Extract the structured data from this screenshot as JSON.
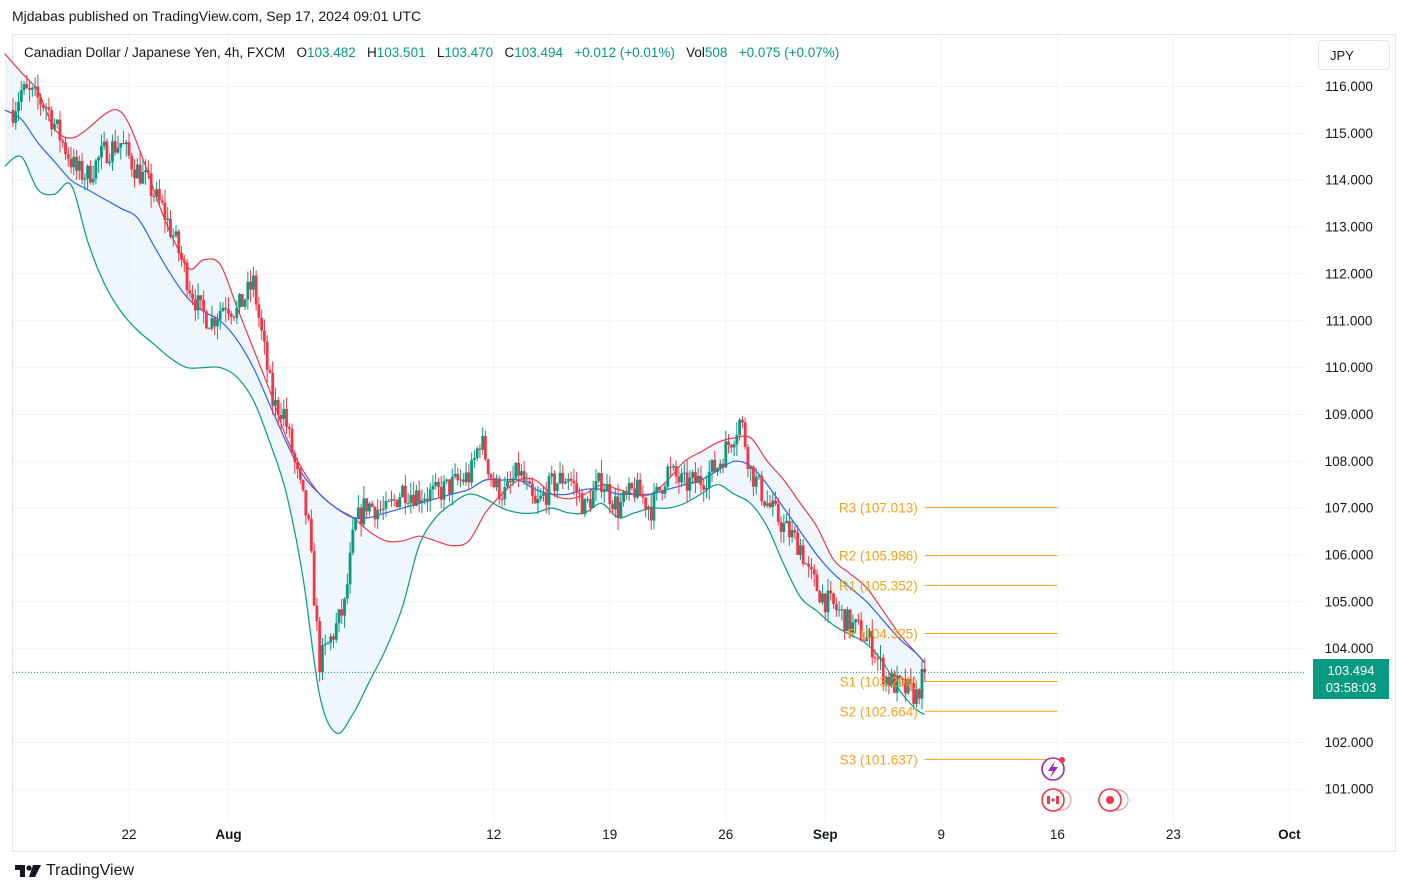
{
  "header": {
    "published_by": "Mjdabas published on TradingView.com, Sep 17, 2024 09:01 UTC"
  },
  "legend": {
    "symbol": "Canadian Dollar / Japanese Yen, 4h, FXCM",
    "open_label": "O",
    "open": "103.482",
    "high_label": "H",
    "high": "103.501",
    "low_label": "L",
    "low": "103.470",
    "close_label": "C",
    "close": "103.494",
    "change": "+0.012 (+0.01%)",
    "vol_label": "Vol",
    "vol": "508",
    "vol_change": "+0.075 (+0.07%)"
  },
  "currency_button": "JPY",
  "price_tag": {
    "price": "103.494",
    "countdown": "03:58:03"
  },
  "footer": {
    "brand": "TradingView"
  },
  "colors": {
    "up": "#089981",
    "down": "#f23645",
    "bb_upper": "#f23645",
    "bb_basis": "#2962ff",
    "bb_lower": "#089981",
    "bb_fill": "#e8f2fb",
    "pivot": "#f7a21b",
    "grid": "#f0f3fa"
  },
  "chart_data": {
    "type": "candlestick",
    "symbol": "CADJPY",
    "timeframe": "4h",
    "yticks": [
      "116.000",
      "115.000",
      "114.000",
      "113.000",
      "112.000",
      "111.000",
      "110.000",
      "109.000",
      "108.000",
      "107.000",
      "106.000",
      "105.000",
      "104.000",
      "102.000",
      "101.000"
    ],
    "ylim": [
      100.3,
      117.1
    ],
    "xlabels": [
      "22",
      "Aug",
      "12",
      "19",
      "26",
      "Sep",
      "9",
      "16",
      "23",
      "Oct"
    ],
    "xlabel_ticks": [
      22,
      28,
      44,
      51,
      58,
      64,
      71,
      78,
      85,
      92
    ],
    "xlim": [
      15,
      93
    ],
    "last_price": 103.494,
    "price_path": [
      [
        15.0,
        115.5
      ],
      [
        15.5,
        115.9
      ],
      [
        16.2,
        115.8
      ],
      [
        17.0,
        115.6
      ],
      [
        18.0,
        114.8
      ],
      [
        18.8,
        114.2
      ],
      [
        19.5,
        114.1
      ],
      [
        20.5,
        114.6
      ],
      [
        21.5,
        114.8
      ],
      [
        22.3,
        114.3
      ],
      [
        23.0,
        114.0
      ],
      [
        24.0,
        113.4
      ],
      [
        24.8,
        112.7
      ],
      [
        25.6,
        111.8
      ],
      [
        26.3,
        111.2
      ],
      [
        27.0,
        111.0
      ],
      [
        27.8,
        111.4
      ],
      [
        28.5,
        111.2
      ],
      [
        29.5,
        111.8
      ],
      [
        30.0,
        110.7
      ],
      [
        30.7,
        109.2
      ],
      [
        31.3,
        109.1
      ],
      [
        32.2,
        107.6
      ],
      [
        32.8,
        106.7
      ],
      [
        33.5,
        103.7
      ],
      [
        34.3,
        104.3
      ],
      [
        35.0,
        104.9
      ],
      [
        35.6,
        106.6
      ],
      [
        36.3,
        107.1
      ],
      [
        37.5,
        106.9
      ],
      [
        38.5,
        107.4
      ],
      [
        39.3,
        107.3
      ],
      [
        40.5,
        107.3
      ],
      [
        41.5,
        107.5
      ],
      [
        42.6,
        107.7
      ],
      [
        43.2,
        108.5
      ],
      [
        44.0,
        107.5
      ],
      [
        44.7,
        107.3
      ],
      [
        45.5,
        107.8
      ],
      [
        46.5,
        107.0
      ],
      [
        47.5,
        107.5
      ],
      [
        48.5,
        107.7
      ],
      [
        49.5,
        107.0
      ],
      [
        50.5,
        107.6
      ],
      [
        51.5,
        107.0
      ],
      [
        52.5,
        107.4
      ],
      [
        53.5,
        107.0
      ],
      [
        54.5,
        107.8
      ],
      [
        55.5,
        107.5
      ],
      [
        56.5,
        107.6
      ],
      [
        57.5,
        107.9
      ],
      [
        58.2,
        108.4
      ],
      [
        58.9,
        108.9
      ],
      [
        59.5,
        107.8
      ],
      [
        60.5,
        107.1
      ],
      [
        61.5,
        106.6
      ],
      [
        62.5,
        106.2
      ],
      [
        63.0,
        105.6
      ],
      [
        63.5,
        105.3
      ],
      [
        64.1,
        105.0
      ],
      [
        64.8,
        104.8
      ],
      [
        65.5,
        104.5
      ],
      [
        66.0,
        104.4
      ],
      [
        66.8,
        104.1
      ],
      [
        67.6,
        103.4
      ],
      [
        68.3,
        103.2
      ],
      [
        69.0,
        103.1
      ],
      [
        69.5,
        103.0
      ],
      [
        70.0,
        103.49
      ]
    ],
    "bollinger_bands": {
      "upper_path": [
        [
          14.5,
          116.7
        ],
        [
          15.5,
          116.3
        ],
        [
          16.5,
          115.9
        ],
        [
          17.5,
          115.1
        ],
        [
          18.5,
          114.9
        ],
        [
          19.5,
          115.1
        ],
        [
          20.5,
          115.4
        ],
        [
          21.3,
          115.5
        ],
        [
          22.0,
          115.2
        ],
        [
          23.0,
          114.3
        ],
        [
          24.0,
          113.3
        ],
        [
          25.0,
          112.5
        ],
        [
          25.7,
          112.1
        ],
        [
          26.5,
          112.3
        ],
        [
          27.5,
          112.2
        ],
        [
          28.5,
          111.3
        ],
        [
          29.5,
          110.4
        ],
        [
          30.5,
          109.5
        ],
        [
          31.5,
          108.5
        ],
        [
          32.5,
          107.8
        ],
        [
          33.5,
          107.3
        ],
        [
          34.5,
          107.0
        ],
        [
          35.5,
          106.8
        ],
        [
          36.5,
          106.5
        ],
        [
          37.5,
          106.3
        ],
        [
          38.5,
          106.3
        ],
        [
          39.5,
          106.4
        ],
        [
          40.5,
          106.3
        ],
        [
          41.5,
          106.2
        ],
        [
          42.5,
          106.3
        ],
        [
          43.5,
          106.9
        ],
        [
          44.5,
          107.3
        ],
        [
          45.5,
          107.6
        ],
        [
          46.5,
          107.6
        ],
        [
          47.5,
          107.3
        ],
        [
          48.5,
          107.2
        ],
        [
          49.5,
          107.3
        ],
        [
          50.5,
          107.5
        ],
        [
          51.5,
          107.4
        ],
        [
          52.5,
          107.3
        ],
        [
          53.5,
          107.3
        ],
        [
          54.5,
          107.6
        ],
        [
          55.5,
          108.0
        ],
        [
          56.5,
          108.2
        ],
        [
          57.5,
          108.4
        ],
        [
          58.5,
          108.5
        ],
        [
          59.5,
          108.5
        ],
        [
          60.5,
          108.0
        ],
        [
          61.5,
          107.6
        ],
        [
          62.5,
          107.1
        ],
        [
          63.5,
          106.6
        ],
        [
          64.5,
          105.9
        ],
        [
          65.5,
          105.6
        ],
        [
          66.5,
          105.3
        ],
        [
          67.5,
          104.8
        ],
        [
          68.5,
          104.3
        ],
        [
          69.5,
          103.9
        ],
        [
          70.0,
          103.7
        ]
      ],
      "basis_path": [
        [
          14.5,
          115.5
        ],
        [
          15.5,
          115.3
        ],
        [
          16.5,
          114.8
        ],
        [
          17.5,
          114.4
        ],
        [
          18.5,
          114.0
        ],
        [
          19.5,
          113.8
        ],
        [
          20.5,
          113.6
        ],
        [
          21.5,
          113.4
        ],
        [
          22.5,
          113.2
        ],
        [
          23.5,
          112.6
        ],
        [
          24.5,
          112.0
        ],
        [
          25.5,
          111.5
        ],
        [
          26.5,
          111.2
        ],
        [
          27.5,
          111.0
        ],
        [
          28.5,
          110.6
        ],
        [
          29.5,
          110.0
        ],
        [
          30.5,
          109.2
        ],
        [
          31.5,
          108.4
        ],
        [
          32.5,
          107.7
        ],
        [
          33.5,
          107.3
        ],
        [
          34.5,
          107.0
        ],
        [
          35.5,
          106.8
        ],
        [
          36.5,
          106.8
        ],
        [
          37.5,
          106.9
        ],
        [
          38.5,
          107.0
        ],
        [
          39.5,
          107.1
        ],
        [
          40.5,
          107.2
        ],
        [
          41.5,
          107.3
        ],
        [
          42.5,
          107.4
        ],
        [
          43.5,
          107.6
        ],
        [
          44.5,
          107.6
        ],
        [
          45.5,
          107.6
        ],
        [
          46.5,
          107.4
        ],
        [
          47.5,
          107.3
        ],
        [
          48.5,
          107.3
        ],
        [
          49.5,
          107.4
        ],
        [
          50.5,
          107.4
        ],
        [
          51.5,
          107.3
        ],
        [
          52.5,
          107.3
        ],
        [
          53.5,
          107.3
        ],
        [
          54.5,
          107.4
        ],
        [
          55.5,
          107.5
        ],
        [
          56.5,
          107.6
        ],
        [
          57.5,
          107.8
        ],
        [
          58.5,
          108.0
        ],
        [
          59.5,
          107.9
        ],
        [
          60.5,
          107.5
        ],
        [
          61.5,
          107.0
        ],
        [
          62.5,
          106.5
        ],
        [
          63.5,
          106.0
        ],
        [
          64.5,
          105.6
        ],
        [
          65.5,
          105.3
        ],
        [
          66.5,
          105.0
        ],
        [
          67.5,
          104.6
        ],
        [
          68.5,
          104.2
        ],
        [
          69.5,
          103.9
        ],
        [
          70.0,
          103.7
        ]
      ],
      "lower_path": [
        [
          14.5,
          114.3
        ],
        [
          15.5,
          114.5
        ],
        [
          16.5,
          113.8
        ],
        [
          17.5,
          113.7
        ],
        [
          18.5,
          113.9
        ],
        [
          19.5,
          112.7
        ],
        [
          20.5,
          111.8
        ],
        [
          21.5,
          111.2
        ],
        [
          22.5,
          110.8
        ],
        [
          23.5,
          110.5
        ],
        [
          24.5,
          110.2
        ],
        [
          25.5,
          110.0
        ],
        [
          26.5,
          110.0
        ],
        [
          27.5,
          110.0
        ],
        [
          28.5,
          109.8
        ],
        [
          29.5,
          109.3
        ],
        [
          30.5,
          108.4
        ],
        [
          31.5,
          107.3
        ],
        [
          32.5,
          105.5
        ],
        [
          33.5,
          103.0
        ],
        [
          34.5,
          102.2
        ],
        [
          35.5,
          102.6
        ],
        [
          36.5,
          103.3
        ],
        [
          37.5,
          104.0
        ],
        [
          38.5,
          104.9
        ],
        [
          39.5,
          106.2
        ],
        [
          40.5,
          106.8
        ],
        [
          41.5,
          107.1
        ],
        [
          42.5,
          107.3
        ],
        [
          43.5,
          107.2
        ],
        [
          44.5,
          107.0
        ],
        [
          45.5,
          106.9
        ],
        [
          46.5,
          106.9
        ],
        [
          47.5,
          107.0
        ],
        [
          48.5,
          106.9
        ],
        [
          49.5,
          106.9
        ],
        [
          50.5,
          107.1
        ],
        [
          51.5,
          106.8
        ],
        [
          52.5,
          106.9
        ],
        [
          53.5,
          107.0
        ],
        [
          54.5,
          107.0
        ],
        [
          55.5,
          107.1
        ],
        [
          56.5,
          107.3
        ],
        [
          57.5,
          107.5
        ],
        [
          58.5,
          107.3
        ],
        [
          59.5,
          107.1
        ],
        [
          60.5,
          106.6
        ],
        [
          61.5,
          105.8
        ],
        [
          62.5,
          105.1
        ],
        [
          63.5,
          104.8
        ],
        [
          64.5,
          104.5
        ],
        [
          65.5,
          104.3
        ],
        [
          66.5,
          104.1
        ],
        [
          67.5,
          103.7
        ],
        [
          68.5,
          103.1
        ],
        [
          69.5,
          102.7
        ],
        [
          70.0,
          102.6
        ]
      ]
    },
    "pivot_levels": [
      {
        "label": "R3 (107.013)",
        "value": 107.013
      },
      {
        "label": "R2 (105.986)",
        "value": 105.986
      },
      {
        "label": "R1 (105.352)",
        "value": 105.352
      },
      {
        "label": "P (104.325)",
        "value": 104.325
      },
      {
        "label": "S1 (103.298)",
        "value": 103.298
      },
      {
        "label": "S2 (102.664)",
        "value": 102.664
      },
      {
        "label": "S3 (101.637)",
        "value": 101.637
      }
    ],
    "pivot_range": [
      70.0,
      78.0
    ]
  }
}
